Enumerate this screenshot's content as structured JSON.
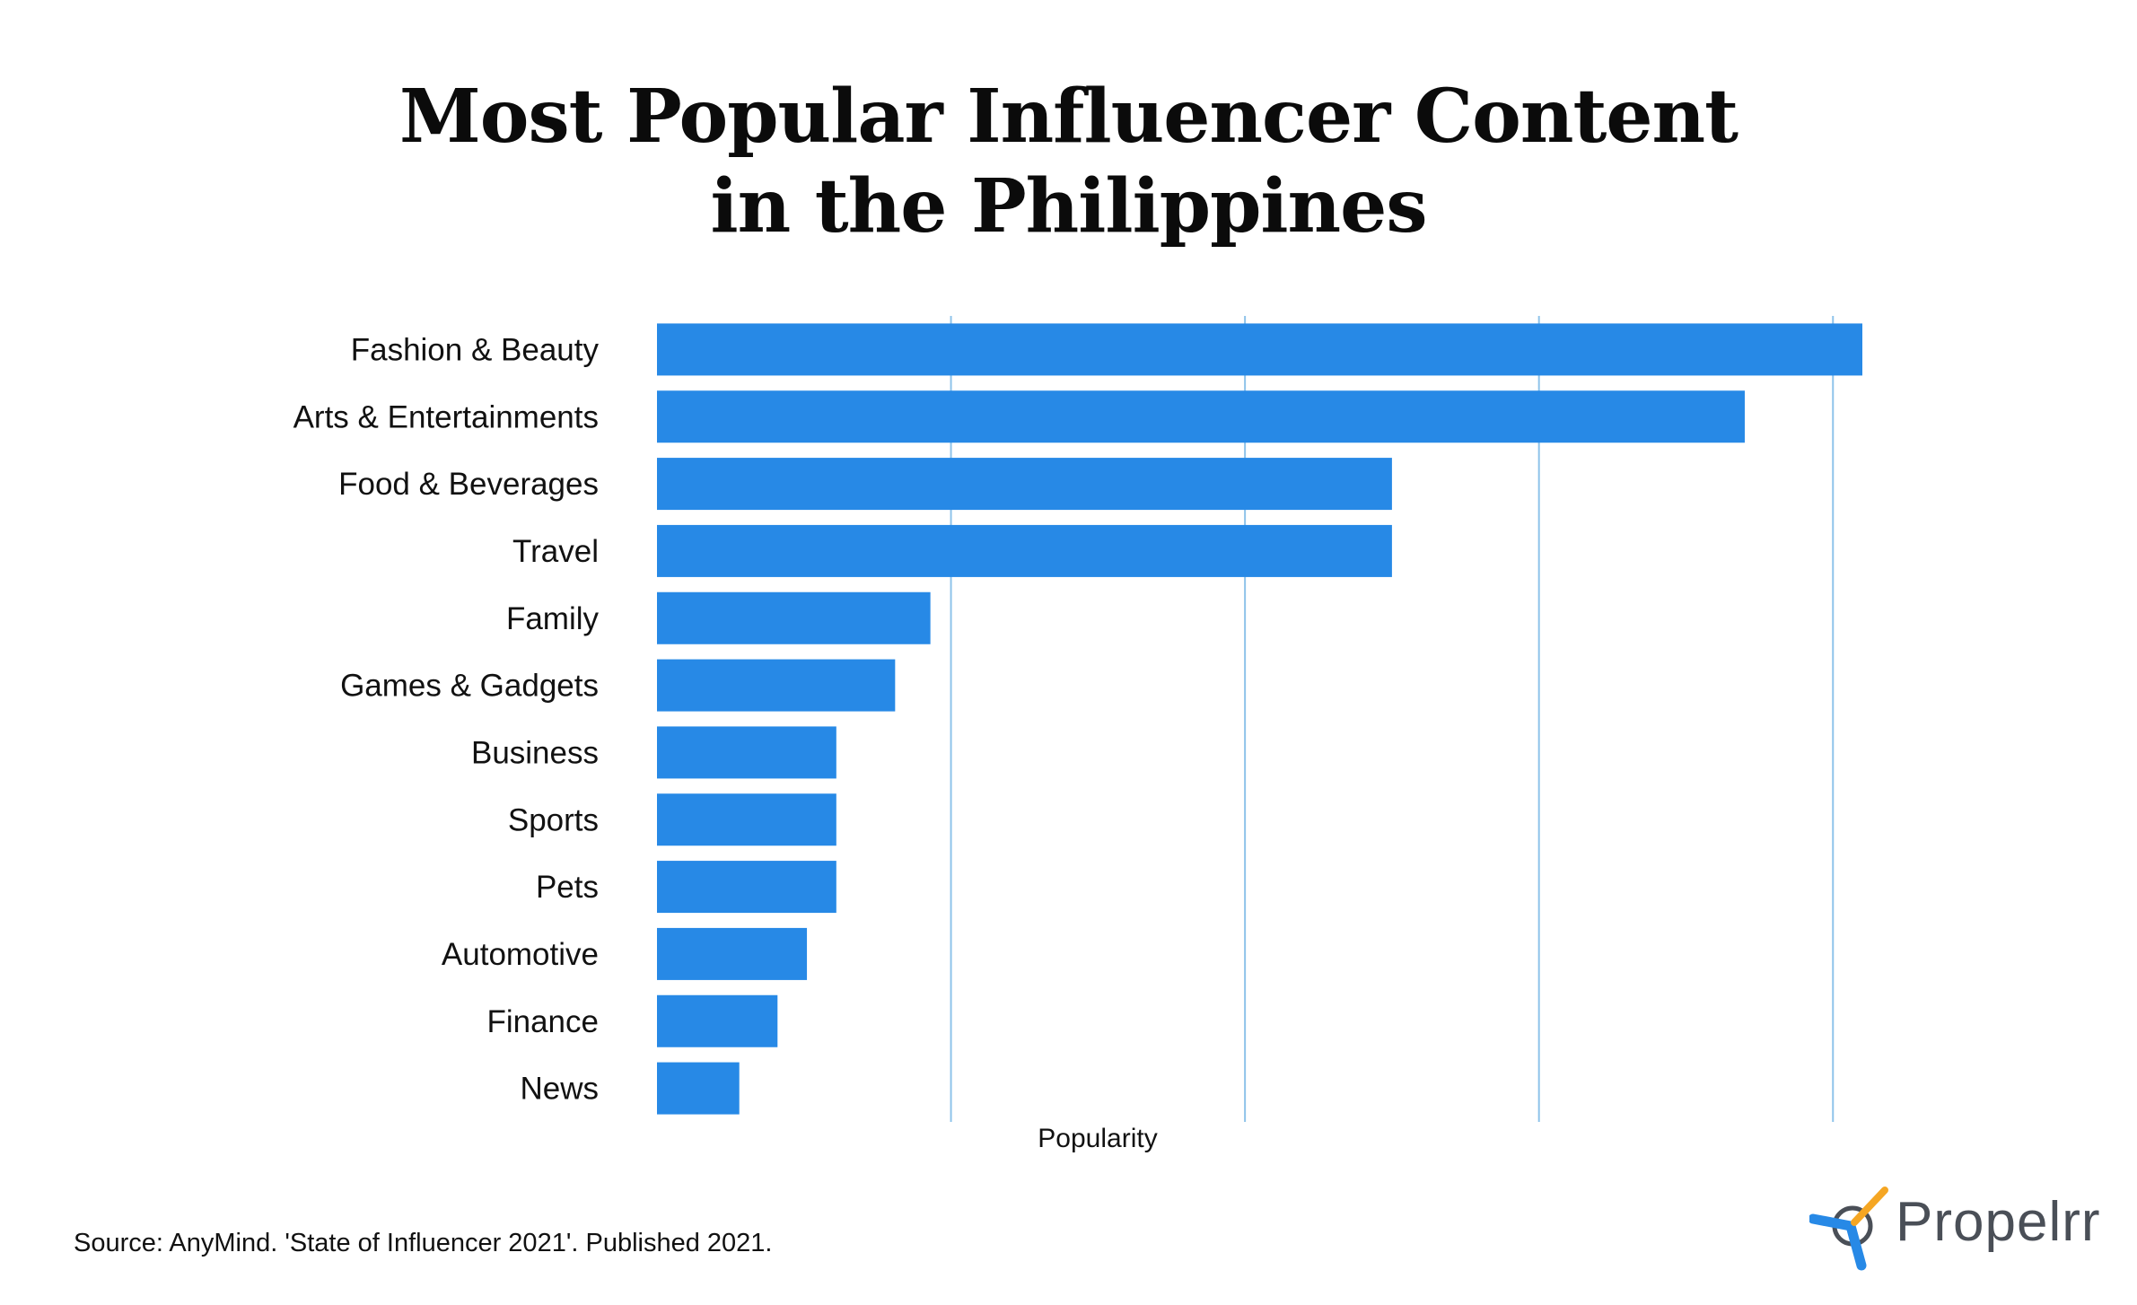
{
  "chart_data": {
    "type": "bar",
    "orientation": "horizontal",
    "title": "Most Popular Influencer Content in the Philippines",
    "title_lines": [
      "Most Popular Influencer Content",
      "in the Philippines"
    ],
    "categories": [
      "Fashion & Beauty",
      "Arts & Entertainments",
      "Food & Beverages",
      "Travel",
      "Family",
      "Games & Gadgets",
      "Business",
      "Sports",
      "Pets",
      "Automotive",
      "Finance",
      "News"
    ],
    "values": [
      41,
      37,
      25,
      25,
      9.3,
      8.1,
      6.1,
      6.1,
      6.1,
      5.1,
      4.1,
      2.8
    ],
    "xlim": [
      0,
      41
    ],
    "xlabel": "Popularity",
    "ylabel": "",
    "grid": true,
    "gridlines_at": [
      10,
      20,
      30,
      40
    ],
    "legend": "none",
    "bar_color": "#2789e6",
    "grid_color": "#8ec3ea"
  },
  "footer": {
    "source": "Source: AnyMind. 'State of Influencer 2021'. Published 2021."
  },
  "logo": {
    "text": "Propelrr",
    "icon": "propeller-icon",
    "colors": [
      "#2789e6",
      "#f5a623"
    ]
  }
}
